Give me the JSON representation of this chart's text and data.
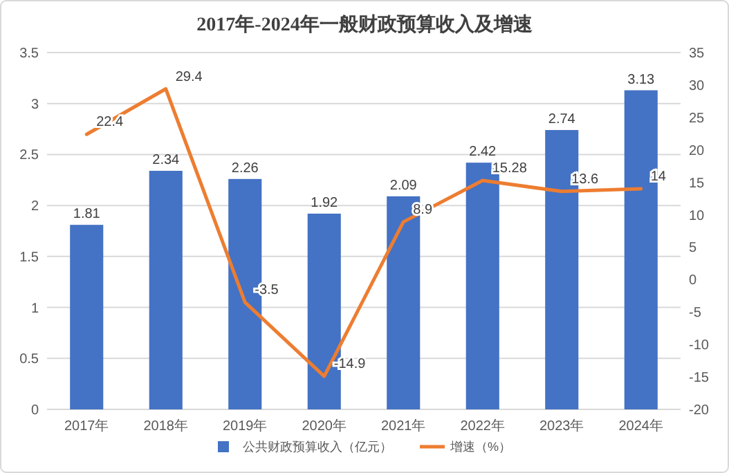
{
  "chart_data": {
    "type": "bar",
    "title": "2017年-2024年一般财政预算收入及增速",
    "categories": [
      "2017年",
      "2018年",
      "2019年",
      "2020年",
      "2021年",
      "2022年",
      "2023年",
      "2024年"
    ],
    "series": [
      {
        "name": "公共财政预算收入（亿元）",
        "color": "#4472c4",
        "values": [
          1.81,
          2.34,
          2.26,
          1.92,
          2.09,
          2.42,
          2.74,
          3.13
        ]
      },
      {
        "name": "增速（%）",
        "type": "line",
        "axis": "y2",
        "color": "#ed7d31",
        "values": [
          22.4,
          29.4,
          -3.5,
          -14.9,
          8.9,
          15.28,
          13.6,
          14
        ]
      }
    ],
    "ylim": [
      0,
      3.5
    ],
    "yticks": [
      0,
      0.5,
      1,
      1.5,
      2,
      2.5,
      3,
      3.5
    ],
    "y2lim": [
      -20,
      35
    ],
    "y2ticks": [
      -20,
      -15,
      -10,
      -5,
      0,
      5,
      10,
      15,
      20,
      25,
      30,
      35
    ],
    "grid": "y",
    "legend": "bottom",
    "data_labels": true,
    "marker": "none",
    "line_style": "solid"
  }
}
